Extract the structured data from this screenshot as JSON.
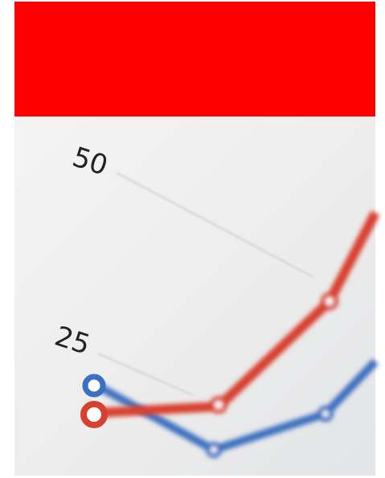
{
  "photo": {
    "labels": [
      "50",
      "25"
    ]
  }
}
